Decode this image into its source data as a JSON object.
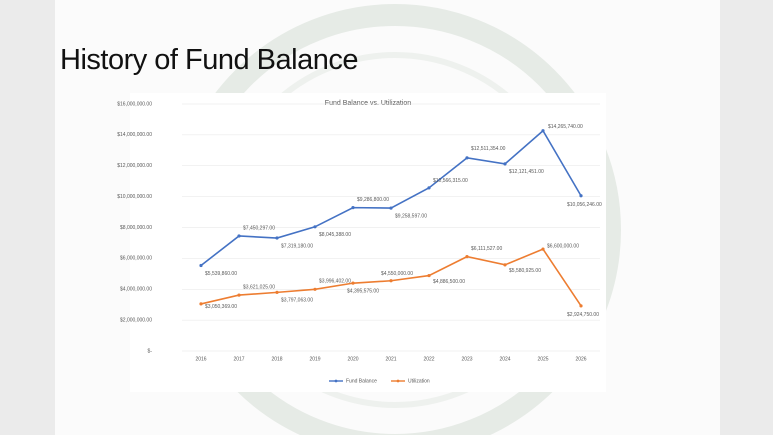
{
  "slide_title": "History of Fund Balance",
  "chart_data": {
    "type": "line",
    "title": "Fund Balance vs. Utilization",
    "categories": [
      "2016",
      "2017",
      "2018",
      "2019",
      "2020",
      "2021",
      "2022",
      "2023",
      "2024",
      "2025",
      "2026"
    ],
    "series": [
      {
        "name": "Fund Balance",
        "color": "#4472c4",
        "values": [
          5539860,
          7450297,
          7319180,
          8045388,
          9286800,
          9258597,
          10566315,
          12511354,
          12121451,
          14265740,
          10056246
        ],
        "value_labels": [
          "$5,539,860.00",
          "$7,450,297.00",
          "$7,319,180.00",
          "$8,045,388.00",
          "$9,286,800.00",
          "$9,258,597.00",
          "$10,566,315.00",
          "$12,511,354.00",
          "$12,121,451.00",
          "$14,265,740.00",
          "$10,056,246.00"
        ]
      },
      {
        "name": "Utilization",
        "color": "#ed7d31",
        "values": [
          3050369,
          3621025,
          3797063,
          3996402,
          4395575,
          4550000,
          4886500,
          6111527,
          5580925,
          6600000,
          2924750
        ],
        "value_labels": [
          "$3,050,369.00",
          "$3,621,025.00",
          "$3,797,063.00",
          "$3,996,402.00",
          "$4,395,575.00",
          "$4,550,000.00",
          "$4,886,500.00",
          "$6,111,527.00",
          "$5,580,925.00",
          "$6,600,000.00",
          "$2,924,750.00"
        ]
      }
    ],
    "ylim": [
      0,
      16000000
    ],
    "yticks": [
      {
        "value": 0,
        "label": "$-"
      },
      {
        "value": 2000000,
        "label": "$2,000,000.00"
      },
      {
        "value": 4000000,
        "label": "$4,000,000.00"
      },
      {
        "value": 6000000,
        "label": "$6,000,000.00"
      },
      {
        "value": 8000000,
        "label": "$8,000,000.00"
      },
      {
        "value": 10000000,
        "label": "$10,000,000.00"
      },
      {
        "value": 12000000,
        "label": "$12,000,000.00"
      },
      {
        "value": 14000000,
        "label": "$14,000,000.00"
      },
      {
        "value": 16000000,
        "label": "$16,000,000.00"
      }
    ],
    "grid": true,
    "legend": "bottom"
  }
}
